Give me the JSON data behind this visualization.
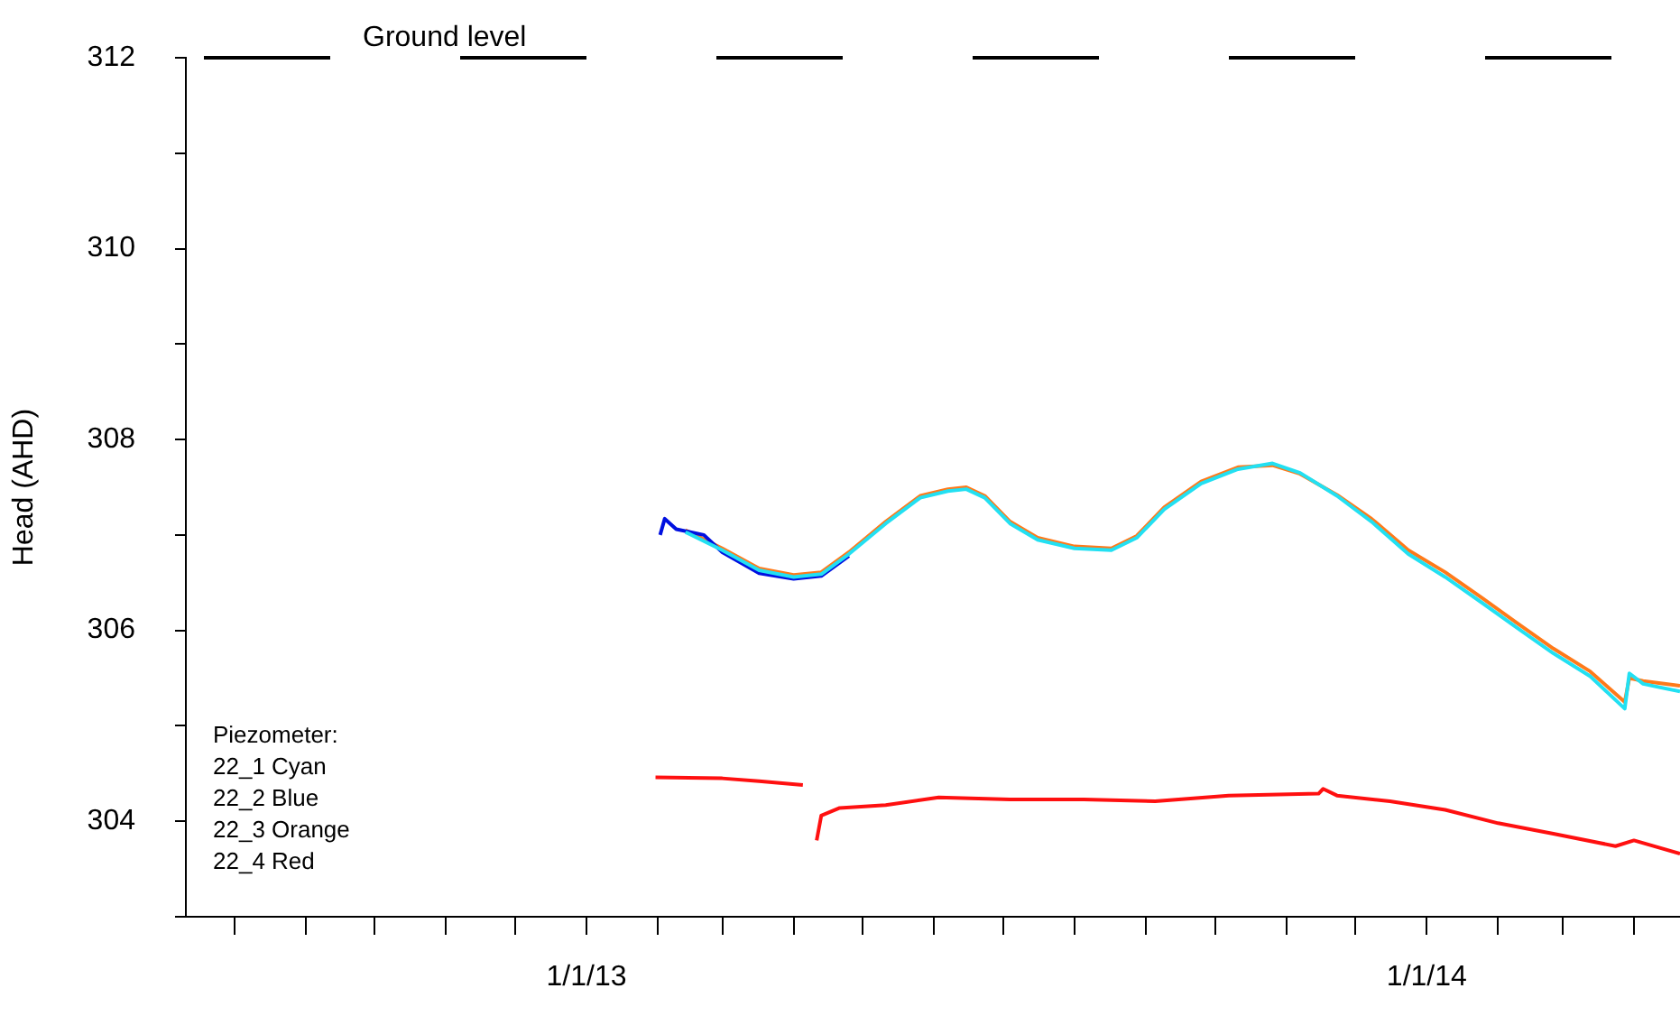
{
  "chart_data": {
    "type": "line",
    "ylabel": "Head (AHD)",
    "xlim": [
      "2012-07-11",
      "2014-04-21"
    ],
    "ylim": [
      303,
      312
    ],
    "xticks": [
      {
        "value": "2012-08-01",
        "label": null
      },
      {
        "value": "2012-09-01",
        "label": null
      },
      {
        "value": "2012-10-01",
        "label": null
      },
      {
        "value": "2012-11-01",
        "label": null
      },
      {
        "value": "2012-12-01",
        "label": null
      },
      {
        "value": "2013-01-01",
        "label": "1/1/13"
      },
      {
        "value": "2013-02-01",
        "label": null
      },
      {
        "value": "2013-03-01",
        "label": null
      },
      {
        "value": "2013-04-01",
        "label": null
      },
      {
        "value": "2013-05-01",
        "label": null
      },
      {
        "value": "2013-06-01",
        "label": null
      },
      {
        "value": "2013-07-01",
        "label": null
      },
      {
        "value": "2013-08-01",
        "label": null
      },
      {
        "value": "2013-09-01",
        "label": null
      },
      {
        "value": "2013-10-01",
        "label": null
      },
      {
        "value": "2013-11-01",
        "label": null
      },
      {
        "value": "2013-12-01",
        "label": null
      },
      {
        "value": "2014-01-01",
        "label": "1/1/14"
      },
      {
        "value": "2014-02-01",
        "label": null
      },
      {
        "value": "2014-03-01",
        "label": null
      },
      {
        "value": "2014-04-01",
        "label": null
      }
    ],
    "yticks": [
      {
        "value": 303,
        "label": null
      },
      304,
      {
        "value": 305,
        "label": null
      },
      306,
      {
        "value": 307,
        "label": null
      },
      308,
      {
        "value": 309,
        "label": null
      },
      310,
      {
        "value": 311,
        "label": null
      },
      312
    ],
    "grid": false,
    "legend": false,
    "marker": "none",
    "line_style": "solid",
    "ref_lines": [
      {
        "axis": "y",
        "value": 312,
        "label": "Ground level",
        "color": "#000000",
        "line_style": "dashed"
      }
    ],
    "annotations": [
      "Piezometer:",
      "22_1 Cyan",
      "22_2 Blue",
      "22_3 Orange",
      "22_4 Red"
    ],
    "series": [
      {
        "color": "#22e0f2",
        "x": [
          "2013-02-13",
          "2013-03-01",
          "2013-03-17",
          "2013-04-01",
          "2013-04-13",
          "2013-04-25",
          "2013-05-11",
          "2013-05-26",
          "2013-06-07",
          "2013-06-15",
          "2013-06-23",
          "2013-07-04",
          "2013-07-16",
          "2013-08-01",
          "2013-08-17",
          "2013-08-28",
          "2013-09-09",
          "2013-09-25",
          "2013-10-11",
          "2013-10-26",
          "2013-11-07",
          "2013-11-23",
          "2013-12-08",
          "2013-12-24",
          "2014-01-09",
          "2014-01-25",
          "2014-02-09",
          "2014-02-25",
          "2014-03-13",
          "2014-03-28",
          "2014-03-30",
          "2014-04-05",
          "2014-04-21"
        ],
        "values": [
          307.03,
          306.84,
          306.63,
          306.56,
          306.59,
          306.8,
          307.12,
          307.39,
          307.46,
          307.48,
          307.39,
          307.12,
          306.95,
          306.86,
          306.84,
          306.97,
          307.27,
          307.54,
          307.69,
          307.75,
          307.65,
          307.41,
          307.14,
          306.8,
          306.56,
          306.29,
          306.03,
          305.76,
          305.52,
          305.18,
          305.55,
          305.44,
          305.36
        ]
      },
      {
        "color": "#0010e0",
        "x": [
          "2013-02-02",
          "2013-02-04",
          "2013-02-09",
          "2013-02-21",
          "2013-03-01",
          "2013-03-17",
          "2013-04-01",
          "2013-04-13",
          "2013-04-25"
        ],
        "values": [
          307.0,
          307.17,
          307.06,
          307.0,
          306.82,
          306.6,
          306.54,
          306.57,
          306.78
        ]
      },
      {
        "color": "#ff7a1a",
        "x": [
          "2013-02-13",
          "2013-03-01",
          "2013-03-17",
          "2013-04-01",
          "2013-04-13",
          "2013-04-25",
          "2013-05-11",
          "2013-05-26",
          "2013-06-07",
          "2013-06-15",
          "2013-06-23",
          "2013-07-04",
          "2013-07-16",
          "2013-08-01",
          "2013-08-17",
          "2013-08-28",
          "2013-09-09",
          "2013-09-25",
          "2013-10-11",
          "2013-10-26",
          "2013-11-07",
          "2013-11-23",
          "2013-12-08",
          "2013-12-24",
          "2014-01-09",
          "2014-01-25",
          "2014-02-09",
          "2014-02-25",
          "2014-03-13",
          "2014-03-28",
          "2014-03-30",
          "2014-04-05",
          "2014-04-21"
        ],
        "values": [
          307.05,
          306.86,
          306.65,
          306.58,
          306.61,
          306.82,
          307.14,
          307.41,
          307.48,
          307.5,
          307.41,
          307.14,
          306.97,
          306.88,
          306.86,
          306.99,
          307.29,
          307.56,
          307.71,
          307.73,
          307.64,
          307.42,
          307.17,
          306.84,
          306.61,
          306.34,
          306.08,
          305.81,
          305.57,
          305.25,
          305.5,
          305.47,
          305.42
        ]
      },
      {
        "color": "#ff1010",
        "x": [
          "2013-01-31",
          "2013-03-01",
          "2013-03-17",
          "2013-04-05",
          "2013-04-08",
          "2013-04-11",
          "2013-04-13",
          "2013-04-21",
          "2013-05-11",
          "2013-06-03",
          "2013-07-04",
          "2013-08-05",
          "2013-09-05",
          "2013-10-07",
          "2013-11-15",
          "2013-11-17",
          "2013-11-23",
          "2013-12-16",
          "2014-01-09",
          "2014-02-01",
          "2014-02-25",
          "2014-03-24",
          "2014-04-01",
          "2014-04-21"
        ],
        "values": [
          304.46,
          304.45,
          304.42,
          304.38,
          null,
          303.8,
          304.06,
          304.14,
          304.17,
          304.25,
          304.23,
          304.23,
          304.21,
          304.27,
          304.29,
          304.34,
          304.27,
          304.21,
          304.12,
          303.98,
          303.87,
          303.74,
          303.8,
          303.66
        ]
      }
    ]
  }
}
